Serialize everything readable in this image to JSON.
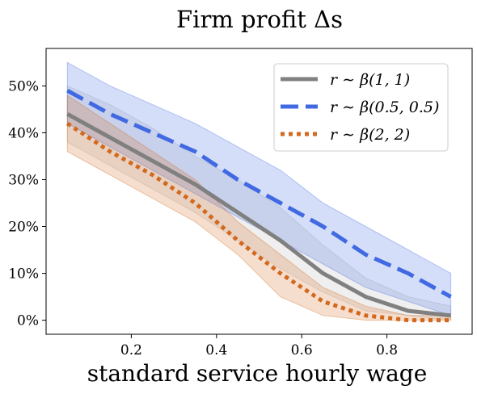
{
  "chart_data": {
    "type": "line",
    "title": "Firm profit Δs",
    "xlabel": "standard service hourly wage",
    "ylabel": "",
    "xlim": [
      0.0,
      1.0
    ],
    "ylim": [
      -0.03,
      0.58
    ],
    "x_ticks": [
      {
        "value": 0.2,
        "label": "0.2"
      },
      {
        "value": 0.4,
        "label": "0.4"
      },
      {
        "value": 0.6,
        "label": "0.6"
      },
      {
        "value": 0.8,
        "label": "0.8"
      }
    ],
    "y_ticks": [
      {
        "value": 0.0,
        "label": "0%"
      },
      {
        "value": 0.1,
        "label": "10%"
      },
      {
        "value": 0.2,
        "label": "20%"
      },
      {
        "value": 0.3,
        "label": "30%"
      },
      {
        "value": 0.4,
        "label": "40%"
      },
      {
        "value": 0.5,
        "label": "50%"
      }
    ],
    "legend_position": "top-right",
    "x": [
      0.05,
      0.15,
      0.25,
      0.35,
      0.45,
      0.55,
      0.65,
      0.75,
      0.85,
      0.95
    ],
    "series": [
      {
        "name": "r ∼ β(1, 1)",
        "color": "#808080",
        "dash": "solid",
        "values": [
          0.44,
          0.39,
          0.34,
          0.29,
          0.23,
          0.17,
          0.1,
          0.05,
          0.02,
          0.01
        ],
        "band_low": [
          0.38,
          0.33,
          0.28,
          0.23,
          0.17,
          0.11,
          0.06,
          0.02,
          0.01,
          0.0
        ],
        "band_high": [
          0.5,
          0.46,
          0.41,
          0.35,
          0.3,
          0.24,
          0.16,
          0.09,
          0.05,
          0.03
        ],
        "band_color": "#b4b4b4"
      },
      {
        "name": "r ∼ β(0.5, 0.5)",
        "color": "#4169e1",
        "dash": "dashed",
        "values": [
          0.49,
          0.44,
          0.4,
          0.36,
          0.3,
          0.25,
          0.2,
          0.14,
          0.1,
          0.05
        ],
        "band_low": [
          0.42,
          0.37,
          0.32,
          0.27,
          0.22,
          0.17,
          0.12,
          0.07,
          0.04,
          0.01
        ],
        "band_high": [
          0.55,
          0.5,
          0.46,
          0.42,
          0.37,
          0.32,
          0.25,
          0.2,
          0.15,
          0.1
        ],
        "band_color": "#4169e1"
      },
      {
        "name": "r ∼ β(2, 2)",
        "color": "#d2691e",
        "dash": "dotted",
        "values": [
          0.42,
          0.36,
          0.31,
          0.25,
          0.17,
          0.1,
          0.04,
          0.01,
          0.0,
          0.0
        ],
        "band_low": [
          0.36,
          0.31,
          0.26,
          0.21,
          0.14,
          0.05,
          0.01,
          0.0,
          0.0,
          0.0
        ],
        "band_high": [
          0.48,
          0.42,
          0.36,
          0.3,
          0.21,
          0.14,
          0.07,
          0.03,
          0.01,
          0.01
        ],
        "band_color": "#d2691e"
      }
    ]
  }
}
